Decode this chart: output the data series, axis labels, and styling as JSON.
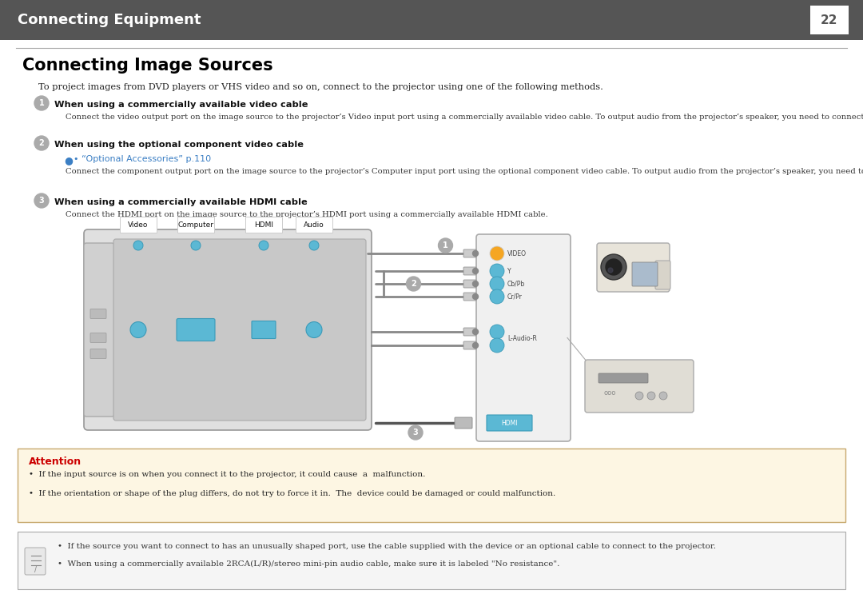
{
  "page_bg": "#ffffff",
  "header_bg": "#555555",
  "header_text": "Connecting Equipment",
  "header_text_color": "#ffffff",
  "header_page_num": "22",
  "header_page_text_color": "#555555",
  "section_title": "Connecting Image Sources",
  "section_title_color": "#000000",
  "intro_text": "To project images from DVD players or VHS video and so on, connect to the projector using one of the following methods.",
  "item1_heading": "When using a commercially available video cable",
  "item1_body": "Connect the video output port on the image source to the projector’s Video input port using a commercially available video cable. To output audio from the projector’s speaker, you need to connect a commercially available audio cable.",
  "item2_heading": "When using the optional component video cable",
  "item2_link": "• “Optional Accessories” p.110",
  "item2_link_color": "#3b7fc4",
  "item2_body": "Connect the component output port on the image source to the projector’s Computer input port using the optional component video cable. To output audio from the projector’s speaker, you need to connect a commercially available audio cable.",
  "item3_heading": "When using a commercially available HDMI cable",
  "item3_body": "Connect the HDMI port on the image source to the projector’s HDMI port using a commercially available HDMI cable.",
  "attention_box_bg": "#fdf6e3",
  "attention_box_border": "#c8a96e",
  "attention_title": "Attention",
  "attention_title_color": "#cc0000",
  "attention_bullet1": "If the input source is on when you connect it to the projector, it could cause  a  malfunction.",
  "attention_bullet2": "If the orientation or shape of the plug differs, do not try to force it in.  The  device could be damaged or could malfunction.",
  "note_box_bg": "#f5f5f5",
  "note_box_border": "#aaaaaa",
  "note_bullet1": "If the source you want to connect to has an unusually shaped port, use the cable supplied with the device or an optional cable to connect to the projector.",
  "note_bullet2": "When using a commercially available 2RCA(L/R)/stereo mini-pin audio cable, make sure it is labeled \"No resistance\".",
  "divider_color": "#aaaaaa",
  "circle_bg": "#aaaaaa",
  "circle_text_color": "#ffffff",
  "cyan_color": "#5bb8d4",
  "port_labels": [
    "Video",
    "Computer",
    "HDMI",
    "Audio"
  ],
  "connector_labels": [
    "VIDEO",
    "Y",
    "Cb/Pb",
    "Cr/Pr",
    "L-Audio-R"
  ],
  "connector_colors": [
    "#5bb8d4",
    "#5bb8d4",
    "#5bb8d4",
    "#5bb8d4",
    "#5bb8d4"
  ]
}
